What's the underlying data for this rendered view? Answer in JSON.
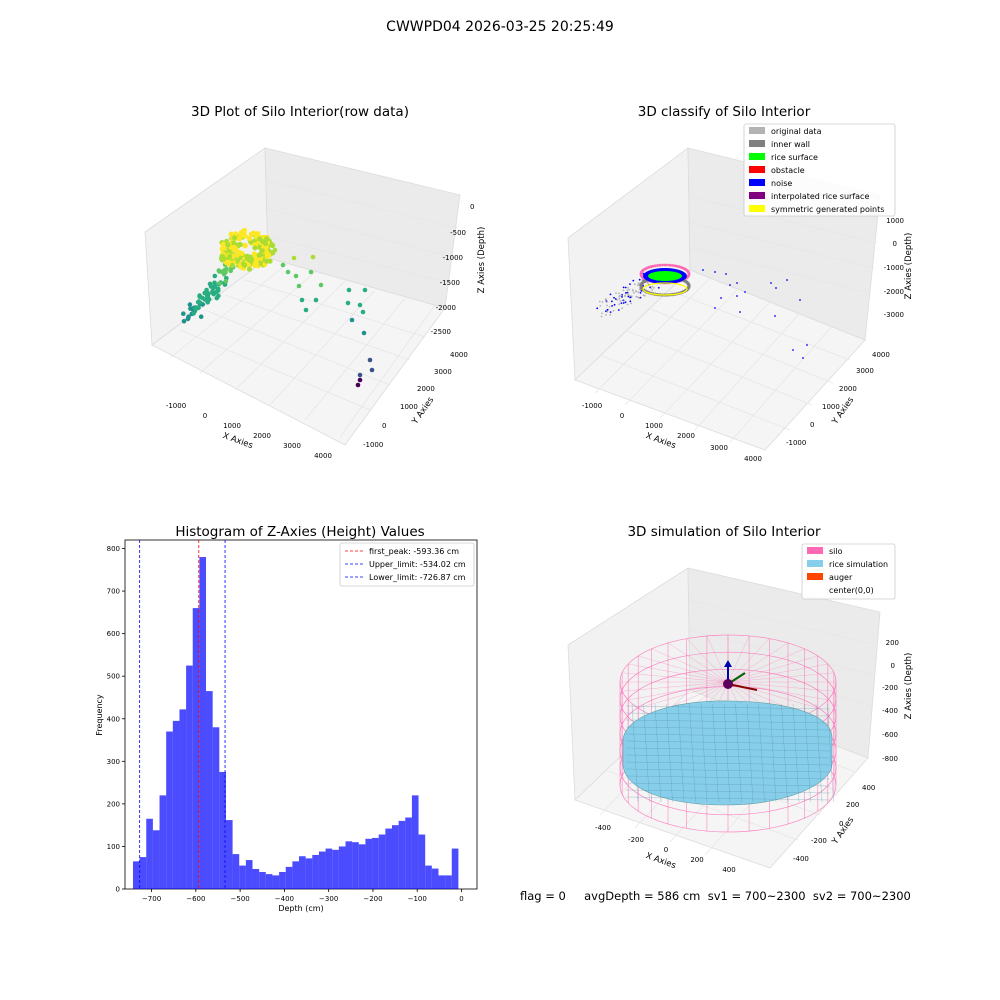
{
  "figure": {
    "suptitle": "CWWPD04 2026-03-25 20:25:49",
    "footer": "flag = 0     avgDepth = 586 cm  sv1 = 700~2300  sv2 = 700~2300"
  },
  "chart_data": [
    {
      "type": "scatter",
      "title": "3D Plot of Silo Interior(row data)",
      "xlabel": "X Axies",
      "ylabel": "Y Axies",
      "zlabel": "Z Axies (Depth)",
      "xticks": [
        "-1000",
        "0",
        "1000",
        "2000",
        "3000",
        "4000"
      ],
      "yticks": [
        "-1000",
        "0",
        "1000",
        "2000",
        "3000",
        "4000"
      ],
      "zticks": [
        "-2500",
        "-2000",
        "-1500",
        "-1000",
        "-500",
        "0"
      ],
      "points": [
        {
          "x": 1800,
          "y": 2800,
          "z": -1100
        },
        {
          "x": 1800,
          "y": 2900,
          "z": -1000
        },
        {
          "x": 1500,
          "y": 2700,
          "z": -1300
        },
        {
          "x": 1700,
          "y": 2500,
          "z": -1500
        },
        {
          "x": 2400,
          "y": 2800,
          "z": -1600
        },
        {
          "x": 2800,
          "y": 2700,
          "z": -1800
        },
        {
          "x": 3200,
          "y": 2600,
          "z": -2000
        },
        {
          "x": 3600,
          "y": 2300,
          "z": -2300
        },
        {
          "x": 3900,
          "y": 2100,
          "z": -2500
        },
        {
          "x": 3950,
          "y": 2000,
          "z": -2600
        }
      ]
    },
    {
      "type": "scatter",
      "title": "3D classify of Silo Interior",
      "xlabel": "X Axies",
      "ylabel": "Y Axies",
      "zlabel": "Z Axies (Depth)",
      "xticks": [
        "-1000",
        "0",
        "1000",
        "2000",
        "3000",
        "4000"
      ],
      "yticks": [
        "-1000",
        "0",
        "1000",
        "2000",
        "3000",
        "4000"
      ],
      "zticks": [
        "-3000",
        "-2000",
        "-1000",
        "0",
        "1000"
      ],
      "legend": [
        {
          "label": "original data",
          "color": "#b3b3b3"
        },
        {
          "label": "inner wall",
          "color": "#808080"
        },
        {
          "label": "rice surface",
          "color": "#00ff00"
        },
        {
          "label": "obstacle",
          "color": "#ff0000"
        },
        {
          "label": "noise",
          "color": "#0000ff"
        },
        {
          "label": "interpolated rice surface",
          "color": "#800080"
        },
        {
          "label": "symmetric generated points",
          "color": "#ffff00"
        }
      ],
      "legend_loc": "upper right"
    },
    {
      "type": "bar",
      "title": "Histogram of Z-Axies (Height) Values",
      "xlabel": "Depth (cm)",
      "ylabel": "Frequency",
      "xlim": [
        -760,
        35
      ],
      "ylim": [
        0,
        820
      ],
      "bin_width": 15.0,
      "bins_start": -742,
      "values": [
        65,
        75,
        165,
        138,
        220,
        370,
        395,
        422,
        525,
        660,
        780,
        465,
        380,
        275,
        162,
        82,
        55,
        68,
        47,
        40,
        35,
        32,
        40,
        52,
        65,
        77,
        72,
        80,
        88,
        95,
        92,
        100,
        112,
        110,
        105,
        118,
        120,
        128,
        142,
        150,
        160,
        168,
        220,
        128,
        55,
        48,
        32,
        32,
        95
      ],
      "color": "#0000ff",
      "xticks": [
        "−700",
        "−600",
        "−500",
        "−400",
        "−300",
        "−200",
        "−100",
        "0"
      ],
      "yticks": [
        "0",
        "100",
        "200",
        "300",
        "400",
        "500",
        "600",
        "700",
        "800"
      ],
      "lines": [
        {
          "label": "first_peak: -593.36 cm",
          "x": -593.36,
          "color": "#ff0000"
        },
        {
          "label": "Upper_limit: -534.02 cm",
          "x": -534.02,
          "color": "#0000ff"
        },
        {
          "label": "Lower_limit: -726.87 cm",
          "x": -726.87,
          "color": "#0000ff"
        }
      ],
      "legend_loc": "upper right"
    },
    {
      "type": "surface",
      "title": "3D simulation of Silo Interior",
      "xlabel": "X Axies",
      "ylabel": "Y Axies",
      "zlabel": "Z Axies (Depth)",
      "xticks": [
        "-400",
        "-200",
        "0",
        "200",
        "400"
      ],
      "yticks": [
        "-400",
        "-200",
        "0",
        "200",
        "400"
      ],
      "zticks": [
        "-800",
        "-600",
        "-400",
        "-200",
        "0",
        "200"
      ],
      "legend": [
        {
          "label": "silo",
          "color": "#ff69b4"
        },
        {
          "label": "rice simulation",
          "color": "#87ceeb"
        },
        {
          "label": "auger",
          "color": "#ff4500"
        },
        {
          "label": "center(0,0)",
          "color": ""
        }
      ],
      "legend_loc": "upper right"
    }
  ]
}
